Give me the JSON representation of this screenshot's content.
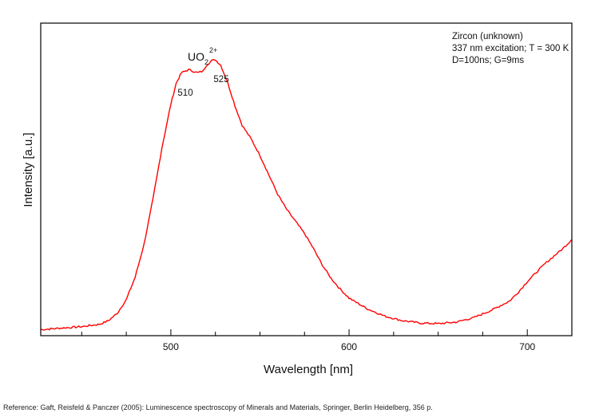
{
  "chart_data": {
    "type": "line",
    "xlabel": "Wavelength [nm]",
    "ylabel": "Intensity [a.u.]",
    "xlim": [
      427,
      725
    ],
    "ylim": [
      0,
      1.04
    ],
    "xticks": [
      500,
      600,
      700
    ],
    "minor_xtick_step": 25,
    "grid": false,
    "line_color": "#ff0000",
    "annotation_lines": [
      "Zircon (unknown)",
      "337 nm excitation; T = 300 K",
      "D=100ns; G=9ms"
    ],
    "species_label": {
      "base": "UO",
      "subscript": "2",
      "superscript": "2+"
    },
    "peaks": [
      {
        "label": "510",
        "x": 510
      },
      {
        "label": "525",
        "x": 525
      }
    ],
    "series": [
      {
        "x": [
          427,
          440,
          450,
          460,
          465,
          470,
          475,
          480,
          485,
          490,
          495,
          500,
          503,
          506,
          510,
          515,
          518,
          520,
          523,
          525,
          528,
          532,
          536,
          540,
          545,
          550,
          555,
          560,
          565,
          570,
          575,
          580,
          585,
          590,
          595,
          600,
          610,
          620,
          630,
          640,
          650,
          660,
          670,
          680,
          690,
          695,
          700,
          710,
          720,
          725
        ],
        "y": [
          0.02,
          0.026,
          0.03,
          0.038,
          0.05,
          0.075,
          0.12,
          0.195,
          0.305,
          0.455,
          0.625,
          0.77,
          0.84,
          0.875,
          0.885,
          0.875,
          0.88,
          0.9,
          0.915,
          0.918,
          0.9,
          0.84,
          0.765,
          0.7,
          0.655,
          0.6,
          0.535,
          0.47,
          0.42,
          0.38,
          0.34,
          0.29,
          0.235,
          0.19,
          0.155,
          0.125,
          0.09,
          0.065,
          0.05,
          0.042,
          0.04,
          0.045,
          0.06,
          0.085,
          0.115,
          0.145,
          0.18,
          0.24,
          0.29,
          0.32
        ]
      }
    ]
  },
  "reference_text": "Reference: Gaft, Reisfeld & Panczer (2005): Luminescence spectroscopy of Minerals and Materials, Springer, Berlin Heidelberg, 356 p."
}
